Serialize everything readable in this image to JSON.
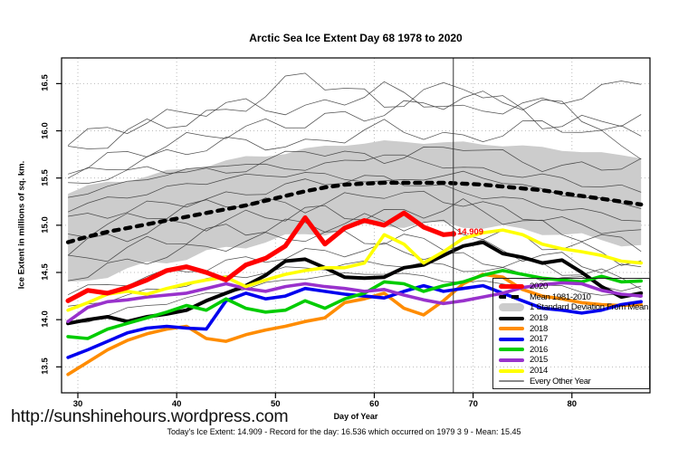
{
  "page": {
    "title": "Arctic Sea Ice Extent Day 68 1978 to 2020",
    "url": "http://sunshinehours.wordpress.com",
    "footer": "Today's Ice Extent: 14.909  - Record for the day: 16.536 which occurred on 1979 3 9  - Mean: 15.45",
    "annotation": "14.909"
  },
  "colors": {
    "red_2020": "#FF0000",
    "black_2019": "#000000",
    "orange_2018": "#FF8C00",
    "blue_2017": "#0000EE",
    "green_2016": "#00CC00",
    "purple_2015": "#9932CC",
    "yellow_2014": "#FFFF00",
    "band_gray": "#CCCCCC",
    "thin_line_gray": "#3D3D3D",
    "grid_gray": "#BBBBBB",
    "annotation_red": "#FF0000"
  },
  "chart_data": {
    "type": "line",
    "title": "Arctic Sea Ice Extent Day 68 1978 to 2020",
    "xlabel": "Day of Year",
    "ylabel": "Ice Extent in millions of sq. km.",
    "xlim": [
      28.35,
      87.9
    ],
    "ylim": [
      13.225,
      16.772
    ],
    "grid": true,
    "x_ticks": [
      30,
      40,
      50,
      60,
      70,
      80
    ],
    "x_tick_labels": [
      "30",
      "40",
      "50",
      "60",
      "70",
      "80"
    ],
    "y_ticks": [
      13.5,
      14.0,
      14.5,
      15.0,
      15.5,
      16.0,
      16.5
    ],
    "y_tick_labels": [
      "13.5",
      "14.0",
      "14.5",
      "15.0",
      "15.5",
      "16.0",
      "16.5"
    ],
    "marker_day": 68,
    "today": {
      "day": 68,
      "ice_extent": 14.909,
      "record": 16.536,
      "record_date": "1979 3 9",
      "mean": 15.45
    },
    "days": [
      29,
      31,
      33,
      35,
      37,
      39,
      41,
      43,
      45,
      47,
      49,
      51,
      53,
      55,
      57,
      59,
      61,
      63,
      65,
      67,
      69,
      71,
      73,
      75,
      77,
      79,
      81,
      83,
      85,
      87
    ],
    "mean_1981_2010": {
      "name": "Mean 1981-2010",
      "color": "#000000",
      "width": 4.4,
      "dash": "6 7",
      "values": [
        14.82,
        14.88,
        14.93,
        14.97,
        15.01,
        15.05,
        15.09,
        15.13,
        15.17,
        15.21,
        15.26,
        15.31,
        15.36,
        15.4,
        15.43,
        15.44,
        15.45,
        15.45,
        15.45,
        15.45,
        15.44,
        15.43,
        15.41,
        15.39,
        15.37,
        15.34,
        15.31,
        15.28,
        15.25,
        15.22
      ]
    },
    "std_band": {
      "name": "1 Standard Deviation From Mean",
      "color": "#CCCCCC",
      "days": [
        29,
        33,
        37,
        41,
        45,
        49,
        53,
        57,
        61,
        65,
        69,
        73,
        77,
        81,
        85,
        87
      ],
      "top": [
        15.35,
        15.45,
        15.52,
        15.6,
        15.68,
        15.74,
        15.8,
        15.86,
        15.88,
        15.88,
        15.87,
        15.85,
        15.82,
        15.78,
        15.74,
        15.72
      ],
      "bottom": [
        14.36,
        14.48,
        14.58,
        14.66,
        14.75,
        14.83,
        14.9,
        14.96,
        15.0,
        15.01,
        15.0,
        14.97,
        14.93,
        14.88,
        14.81,
        14.78
      ]
    },
    "series": [
      {
        "name": "2019",
        "color": "#000000",
        "width": 4,
        "values": [
          13.96,
          14.0,
          14.03,
          13.98,
          14.03,
          14.06,
          14.1,
          14.2,
          14.28,
          14.36,
          14.47,
          14.62,
          14.64,
          14.55,
          14.45,
          14.44,
          14.45,
          14.55,
          14.58,
          14.68,
          14.78,
          14.82,
          14.7,
          14.66,
          14.6,
          14.63,
          14.5,
          14.35,
          14.24,
          14.28
        ]
      },
      {
        "name": "2018",
        "color": "#FF8C00",
        "width": 3.6,
        "values": [
          13.42,
          13.55,
          13.68,
          13.78,
          13.85,
          13.9,
          13.93,
          13.8,
          13.77,
          13.84,
          13.89,
          13.93,
          13.98,
          14.02,
          14.18,
          14.22,
          14.28,
          14.12,
          14.05,
          14.2,
          14.38,
          14.48,
          14.45,
          14.32,
          14.25,
          14.22,
          14.18,
          14.16,
          14.15,
          14.16
        ]
      },
      {
        "name": "2017",
        "color": "#0000EE",
        "width": 3.6,
        "values": [
          13.6,
          13.68,
          13.77,
          13.86,
          13.91,
          13.93,
          13.91,
          13.9,
          14.2,
          14.28,
          14.22,
          14.25,
          14.33,
          14.3,
          14.27,
          14.25,
          14.23,
          14.3,
          14.36,
          14.3,
          14.33,
          14.36,
          14.28,
          14.2,
          14.12,
          14.1,
          14.07,
          14.1,
          14.16,
          14.19
        ]
      },
      {
        "name": "2016",
        "color": "#00CC00",
        "width": 3.6,
        "values": [
          13.82,
          13.8,
          13.9,
          13.96,
          14.02,
          14.08,
          14.15,
          14.1,
          14.22,
          14.12,
          14.08,
          14.1,
          14.2,
          14.12,
          14.22,
          14.28,
          14.4,
          14.38,
          14.3,
          14.36,
          14.4,
          14.47,
          14.52,
          14.48,
          14.44,
          14.42,
          14.4,
          14.46,
          14.4,
          14.41
        ]
      },
      {
        "name": "2015",
        "color": "#9932CC",
        "width": 3.6,
        "values": [
          13.98,
          14.13,
          14.19,
          14.21,
          14.24,
          14.26,
          14.28,
          14.33,
          14.38,
          14.33,
          14.3,
          14.35,
          14.38,
          14.35,
          14.33,
          14.3,
          14.32,
          14.26,
          14.21,
          14.17,
          14.2,
          14.24,
          14.28,
          14.34,
          14.37,
          14.39,
          14.38,
          14.31,
          14.27,
          14.25
        ]
      },
      {
        "name": "2014",
        "color": "#FFFF00",
        "width": 3.6,
        "values": [
          14.1,
          14.18,
          14.27,
          14.3,
          14.27,
          14.33,
          14.38,
          14.42,
          14.45,
          14.35,
          14.42,
          14.48,
          14.52,
          14.55,
          14.55,
          14.6,
          14.9,
          14.8,
          14.6,
          14.72,
          14.86,
          14.92,
          14.95,
          14.9,
          14.8,
          14.75,
          14.72,
          14.68,
          14.62,
          14.6
        ]
      }
    ],
    "series_2020": {
      "name": "2020",
      "color": "#FF0000",
      "width": 5.2,
      "days": [
        29,
        31,
        33,
        35,
        37,
        39,
        41,
        43,
        45,
        47,
        49,
        51,
        53,
        55,
        57,
        59,
        61,
        63,
        65,
        67,
        68
      ],
      "values": [
        14.2,
        14.31,
        14.28,
        14.34,
        14.42,
        14.52,
        14.56,
        14.5,
        14.42,
        14.58,
        14.65,
        14.78,
        15.08,
        14.8,
        14.97,
        15.05,
        15.0,
        15.13,
        14.98,
        14.9,
        14.909
      ]
    },
    "background_years": {
      "name": "Every Other Year",
      "color": "#3D3D3D",
      "width": 0.75,
      "control_days": [
        29,
        37,
        45,
        53,
        61,
        69,
        78,
        87
      ],
      "series": [
        [
          15.9,
          16.1,
          16.28,
          16.22,
          16.45,
          16.2,
          16.3,
          16.55
        ],
        [
          15.75,
          16.05,
          16.18,
          16.6,
          16.28,
          16.5,
          16.05,
          16.15
        ],
        [
          15.6,
          15.8,
          16.0,
          16.1,
          16.2,
          16.35,
          16.28,
          15.9
        ],
        [
          15.5,
          15.7,
          15.88,
          15.84,
          16.05,
          15.9,
          16.1,
          15.78
        ],
        [
          15.42,
          15.6,
          15.55,
          15.8,
          15.7,
          15.85,
          15.6,
          15.65
        ],
        [
          15.3,
          15.5,
          15.65,
          15.6,
          15.75,
          15.6,
          15.5,
          15.35
        ],
        [
          15.18,
          15.35,
          15.5,
          15.55,
          15.45,
          15.55,
          15.35,
          15.2
        ],
        [
          15.05,
          15.2,
          15.3,
          15.45,
          15.5,
          15.35,
          15.2,
          15.05
        ],
        [
          14.9,
          15.1,
          15.25,
          15.2,
          15.35,
          15.25,
          15.05,
          14.9
        ],
        [
          14.75,
          14.95,
          15.05,
          15.15,
          15.1,
          15.2,
          14.95,
          14.78
        ],
        [
          14.6,
          14.8,
          14.95,
          15.0,
          15.05,
          14.95,
          14.8,
          14.62
        ],
        [
          14.45,
          14.65,
          14.8,
          14.9,
          14.85,
          14.8,
          14.65,
          14.5
        ],
        [
          14.28,
          14.45,
          14.6,
          14.7,
          14.75,
          14.65,
          14.55,
          14.4
        ],
        [
          14.12,
          14.3,
          14.45,
          14.55,
          14.6,
          14.55,
          14.45,
          14.32
        ],
        [
          13.95,
          14.15,
          14.3,
          14.45,
          14.5,
          14.4,
          14.35,
          14.22
        ]
      ]
    },
    "legend": {
      "position": "bottom-right",
      "items": [
        {
          "label": "2020",
          "type": "line",
          "color": "#FF0000",
          "width": 5
        },
        {
          "label": "Mean 1981-2010",
          "type": "dashed",
          "color": "#000000",
          "width": 4
        },
        {
          "label": "1 Standard Deviation From Mean",
          "type": "band",
          "color": "#CCCCCC"
        },
        {
          "label": "2019",
          "type": "line",
          "color": "#000000",
          "width": 4
        },
        {
          "label": "2018",
          "type": "line",
          "color": "#FF8C00",
          "width": 4
        },
        {
          "label": "2017",
          "type": "line",
          "color": "#0000EE",
          "width": 4
        },
        {
          "label": "2016",
          "type": "line",
          "color": "#00CC00",
          "width": 4
        },
        {
          "label": "2015",
          "type": "line",
          "color": "#9932CC",
          "width": 4
        },
        {
          "label": "2014",
          "type": "line",
          "color": "#FFFF00",
          "width": 4
        },
        {
          "label": "Every Other Year",
          "type": "thin",
          "color": "#888888",
          "width": 1
        }
      ]
    }
  }
}
